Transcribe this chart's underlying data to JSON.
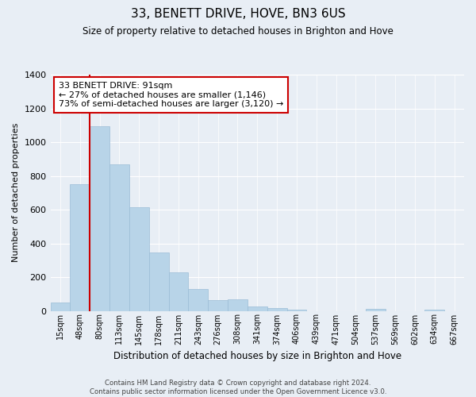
{
  "title": "33, BENETT DRIVE, HOVE, BN3 6US",
  "subtitle": "Size of property relative to detached houses in Brighton and Hove",
  "xlabel": "Distribution of detached houses by size in Brighton and Hove",
  "ylabel": "Number of detached properties",
  "categories": [
    "15sqm",
    "48sqm",
    "80sqm",
    "113sqm",
    "145sqm",
    "178sqm",
    "211sqm",
    "243sqm",
    "276sqm",
    "308sqm",
    "341sqm",
    "374sqm",
    "406sqm",
    "439sqm",
    "471sqm",
    "504sqm",
    "537sqm",
    "569sqm",
    "602sqm",
    "634sqm",
    "667sqm"
  ],
  "values": [
    50,
    750,
    1095,
    870,
    615,
    348,
    228,
    130,
    65,
    70,
    25,
    18,
    5,
    0,
    0,
    0,
    10,
    0,
    0,
    5,
    0
  ],
  "bar_color": "#b8d4e8",
  "bar_edge_color": "#9bbdd6",
  "vline_x_index": 2,
  "vline_color": "#cc0000",
  "annotation_title": "33 BENETT DRIVE: 91sqm",
  "annotation_line1": "← 27% of detached houses are smaller (1,146)",
  "annotation_line2": "73% of semi-detached houses are larger (3,120) →",
  "annotation_box_facecolor": "#ffffff",
  "annotation_box_edgecolor": "#cc0000",
  "ylim": [
    0,
    1400
  ],
  "yticks": [
    0,
    200,
    400,
    600,
    800,
    1000,
    1200,
    1400
  ],
  "bg_color": "#e8eef5",
  "plot_bg_color": "#e8eef5",
  "grid_color": "#ffffff",
  "footer_line1": "Contains HM Land Registry data © Crown copyright and database right 2024.",
  "footer_line2": "Contains public sector information licensed under the Open Government Licence v3.0."
}
